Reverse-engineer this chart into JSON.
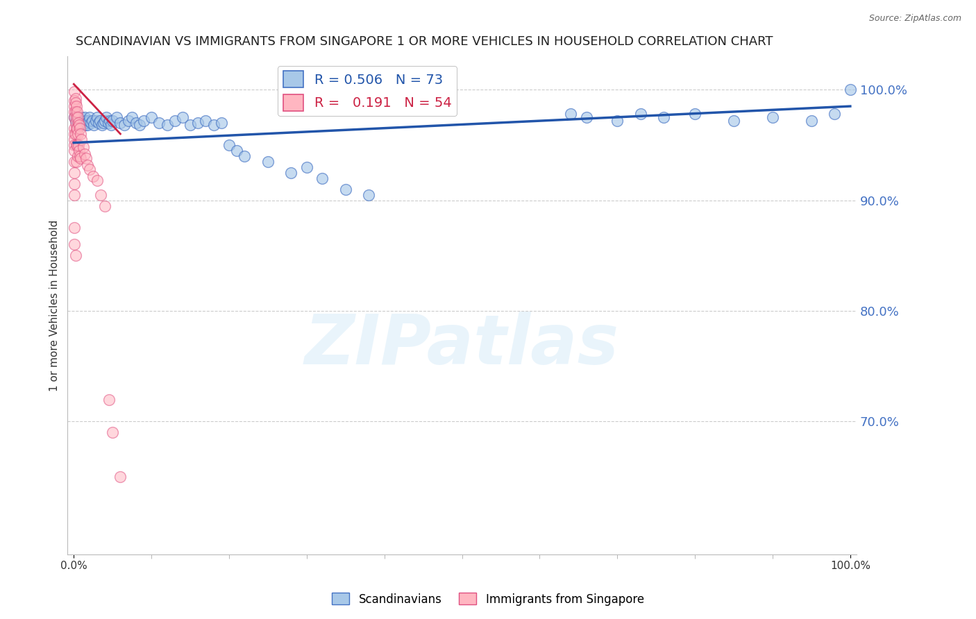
{
  "title": "SCANDINAVIAN VS IMMIGRANTS FROM SINGAPORE 1 OR MORE VEHICLES IN HOUSEHOLD CORRELATION CHART",
  "source": "Source: ZipAtlas.com",
  "ylabel": "1 or more Vehicles in Household",
  "watermark": "ZIPatlas",
  "legend_blue_R": "0.506",
  "legend_blue_N": "73",
  "legend_pink_R": "0.191",
  "legend_pink_N": "54",
  "blue_color": "#a8c8e8",
  "blue_edge_color": "#4472c4",
  "pink_color": "#ffb6c1",
  "pink_edge_color": "#e05080",
  "blue_line_color": "#2255aa",
  "pink_line_color": "#cc2244",
  "ytick_labels": [
    "100.0%",
    "90.0%",
    "80.0%",
    "70.0%"
  ],
  "ytick_values": [
    1.0,
    0.9,
    0.8,
    0.7
  ],
  "ylim": [
    0.58,
    1.03
  ],
  "xlim": [
    -0.008,
    1.008
  ],
  "blue_scatter_x": [
    0.001,
    0.002,
    0.003,
    0.004,
    0.005,
    0.006,
    0.007,
    0.008,
    0.009,
    0.01,
    0.011,
    0.012,
    0.013,
    0.014,
    0.015,
    0.016,
    0.017,
    0.018,
    0.019,
    0.02,
    0.022,
    0.024,
    0.026,
    0.028,
    0.03,
    0.032,
    0.034,
    0.036,
    0.038,
    0.04,
    0.042,
    0.044,
    0.046,
    0.048,
    0.05,
    0.055,
    0.06,
    0.065,
    0.07,
    0.075,
    0.08,
    0.085,
    0.09,
    0.1,
    0.11,
    0.12,
    0.13,
    0.14,
    0.15,
    0.16,
    0.17,
    0.18,
    0.19,
    0.2,
    0.21,
    0.22,
    0.25,
    0.28,
    0.3,
    0.32,
    0.35,
    0.38,
    0.64,
    0.66,
    0.7,
    0.73,
    0.76,
    0.8,
    0.85,
    0.9,
    0.95,
    0.98,
    1.0
  ],
  "blue_scatter_y": [
    0.975,
    0.972,
    0.97,
    0.968,
    0.972,
    0.975,
    0.97,
    0.968,
    0.972,
    0.975,
    0.97,
    0.968,
    0.972,
    0.975,
    0.968,
    0.972,
    0.97,
    0.968,
    0.972,
    0.975,
    0.97,
    0.972,
    0.968,
    0.972,
    0.975,
    0.97,
    0.972,
    0.968,
    0.97,
    0.972,
    0.975,
    0.97,
    0.972,
    0.968,
    0.972,
    0.975,
    0.97,
    0.968,
    0.972,
    0.975,
    0.97,
    0.968,
    0.972,
    0.975,
    0.97,
    0.968,
    0.972,
    0.975,
    0.968,
    0.97,
    0.972,
    0.968,
    0.97,
    0.95,
    0.945,
    0.94,
    0.935,
    0.925,
    0.93,
    0.92,
    0.91,
    0.905,
    0.978,
    0.975,
    0.972,
    0.978,
    0.975,
    0.978,
    0.972,
    0.975,
    0.972,
    0.978,
    1.0
  ],
  "pink_scatter_x": [
    0.001,
    0.001,
    0.001,
    0.001,
    0.001,
    0.001,
    0.001,
    0.001,
    0.001,
    0.001,
    0.001,
    0.001,
    0.001,
    0.001,
    0.001,
    0.001,
    0.002,
    0.002,
    0.002,
    0.002,
    0.002,
    0.002,
    0.003,
    0.003,
    0.003,
    0.003,
    0.003,
    0.004,
    0.004,
    0.004,
    0.005,
    0.005,
    0.005,
    0.006,
    0.006,
    0.007,
    0.007,
    0.008,
    0.008,
    0.009,
    0.009,
    0.01,
    0.012,
    0.014,
    0.016,
    0.018,
    0.02,
    0.025,
    0.03,
    0.035,
    0.04,
    0.045,
    0.05,
    0.06
  ],
  "pink_scatter_y": [
    0.998,
    0.99,
    0.985,
    0.98,
    0.975,
    0.965,
    0.96,
    0.955,
    0.95,
    0.945,
    0.935,
    0.925,
    0.915,
    0.905,
    0.875,
    0.86,
    0.992,
    0.988,
    0.98,
    0.97,
    0.96,
    0.85,
    0.985,
    0.975,
    0.965,
    0.95,
    0.935,
    0.98,
    0.965,
    0.95,
    0.975,
    0.96,
    0.94,
    0.97,
    0.95,
    0.968,
    0.945,
    0.965,
    0.94,
    0.96,
    0.938,
    0.955,
    0.948,
    0.942,
    0.938,
    0.932,
    0.928,
    0.922,
    0.918,
    0.905,
    0.895,
    0.72,
    0.69,
    0.65
  ],
  "blue_trend_x": [
    0.0,
    1.0
  ],
  "blue_trend_y": [
    0.952,
    0.985
  ],
  "pink_trend_x": [
    0.0,
    0.06
  ],
  "pink_trend_y": [
    1.005,
    0.96
  ],
  "background_color": "#ffffff",
  "grid_color": "#cccccc",
  "right_axis_color": "#4472c4",
  "title_fontsize": 13,
  "axis_label_fontsize": 11,
  "scatter_size": 130
}
